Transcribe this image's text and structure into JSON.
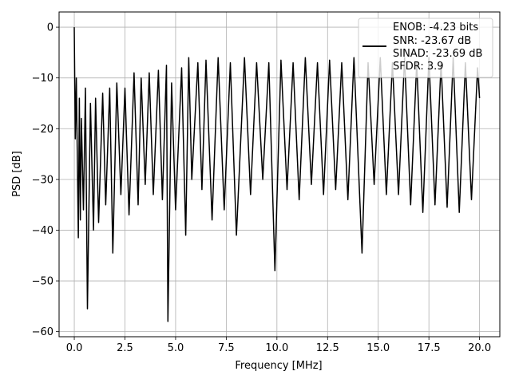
{
  "chart_data": {
    "type": "line",
    "xlabel": "Frequency [MHz]",
    "ylabel": "PSD [dB]",
    "xlim": [
      -0.75,
      21.0
    ],
    "ylim": [
      -61.0,
      3.0
    ],
    "xticks": [
      0.0,
      2.5,
      5.0,
      7.5,
      10.0,
      12.5,
      15.0,
      17.5,
      20.0
    ],
    "xtick_labels": [
      "0.0",
      "2.5",
      "5.0",
      "7.5",
      "10.0",
      "12.5",
      "15.0",
      "17.5",
      "20.0"
    ],
    "yticks": [
      0,
      -10,
      -20,
      -30,
      -40,
      -50,
      -60
    ],
    "ytick_labels": [
      "0",
      "−10",
      "−20",
      "−30",
      "−40",
      "−50",
      "−60"
    ],
    "grid": true,
    "legend_location": "top-right",
    "legend_lines": [
      "ENOB: -4.23 bits",
      "SNR: -23.67 dB",
      "SINAD: -23.69 dB",
      "SFDR: 3.9"
    ],
    "series": [
      {
        "color": "#000000",
        "x": [
          0.0,
          0.05,
          0.1,
          0.2,
          0.25,
          0.3,
          0.35,
          0.45,
          0.55,
          0.65,
          0.8,
          0.95,
          1.05,
          1.2,
          1.4,
          1.55,
          1.75,
          1.9,
          2.1,
          2.3,
          2.5,
          2.7,
          2.95,
          3.15,
          3.3,
          3.5,
          3.7,
          3.9,
          4.15,
          4.35,
          4.55,
          4.62,
          4.8,
          5.0,
          5.3,
          5.5,
          5.65,
          5.8,
          6.1,
          6.3,
          6.5,
          6.8,
          7.1,
          7.4,
          7.7,
          8.0,
          8.4,
          8.7,
          9.0,
          9.3,
          9.6,
          9.9,
          10.2,
          10.5,
          10.8,
          11.1,
          11.4,
          11.7,
          12.0,
          12.3,
          12.6,
          12.9,
          13.2,
          13.5,
          13.8,
          14.2,
          14.5,
          14.8,
          15.1,
          15.4,
          15.7,
          16.0,
          16.3,
          16.6,
          16.9,
          17.2,
          17.5,
          17.8,
          18.1,
          18.4,
          18.7,
          19.0,
          19.3,
          19.6,
          19.9,
          20.0
        ],
        "y": [
          0.0,
          -22.0,
          -10.0,
          -41.5,
          -14.0,
          -38.0,
          -18.0,
          -36.0,
          -12.0,
          -55.5,
          -15.0,
          -40.0,
          -14.0,
          -38.5,
          -13.0,
          -35.0,
          -12.0,
          -44.5,
          -11.0,
          -33.0,
          -12.0,
          -37.0,
          -9.0,
          -35.0,
          -10.0,
          -31.0,
          -9.0,
          -33.0,
          -8.5,
          -34.0,
          -7.5,
          -58.0,
          -11.0,
          -36.0,
          -8.0,
          -41.0,
          -6.0,
          -30.0,
          -7.0,
          -32.0,
          -6.5,
          -38.0,
          -6.0,
          -36.0,
          -7.0,
          -41.0,
          -6.0,
          -33.0,
          -7.0,
          -30.0,
          -7.0,
          -48.0,
          -6.5,
          -32.0,
          -7.0,
          -34.0,
          -6.0,
          -31.0,
          -7.0,
          -33.0,
          -6.5,
          -32.0,
          -7.0,
          -34.0,
          -6.0,
          -44.5,
          -7.0,
          -31.0,
          -6.0,
          -33.0,
          -7.0,
          -33.0,
          -6.0,
          -35.0,
          -7.0,
          -36.5,
          -6.0,
          -35.0,
          -7.0,
          -35.5,
          -6.0,
          -36.5,
          -7.0,
          -34.0,
          -8.0,
          -14.0
        ]
      }
    ]
  }
}
